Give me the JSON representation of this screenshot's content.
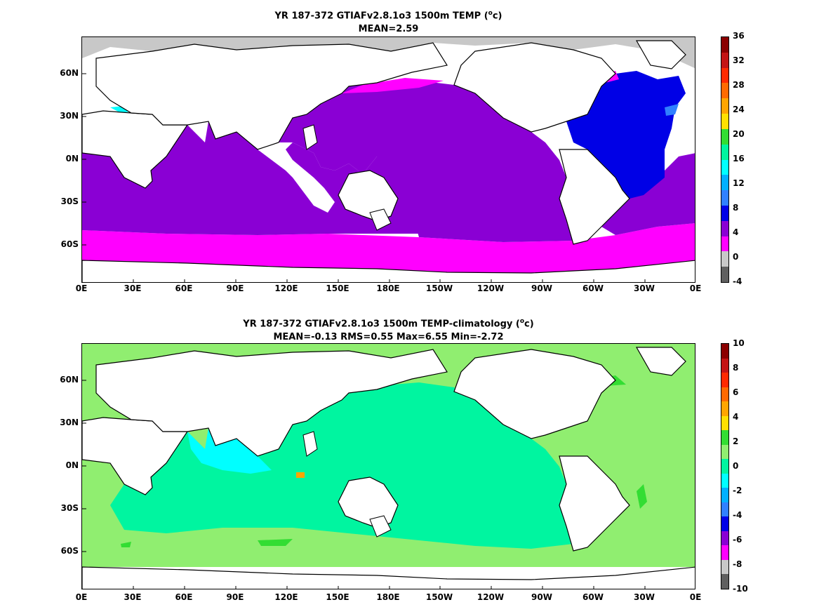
{
  "panels": [
    {
      "title_line1": "YR 187-372 GTIAFv2.8.1o3 1500m TEMP (",
      "title_unit": "o",
      "title_unit_after": "c)",
      "title_line2": "MEAN=2.59",
      "lat_labels": [
        "60N",
        "30N",
        "0N",
        "30S",
        "60S"
      ],
      "lon_labels": [
        "0E",
        "30E",
        "60E",
        "90E",
        "120E",
        "150E",
        "180E",
        "150W",
        "120W",
        "90W",
        "60W",
        "30W",
        "0E"
      ],
      "colorbar": {
        "labels": [
          "36",
          "32",
          "28",
          "24",
          "20",
          "16",
          "12",
          "8",
          "4",
          "0",
          "-4"
        ],
        "colors": [
          "#8b0000",
          "#c41414",
          "#ff2a00",
          "#ff6a00",
          "#ffa500",
          "#ffe000",
          "#33dd33",
          "#00f5a0",
          "#00ffff",
          "#00b0ff",
          "#3080ff",
          "#0000e6",
          "#8a00d4",
          "#ff00ff",
          "#c8c8c8",
          "#606060"
        ]
      }
    },
    {
      "title_line1": "YR 187-372 GTIAFv2.8.1o3 1500m TEMP-climatology (",
      "title_unit": "o",
      "title_unit_after": "c)",
      "title_line2": "MEAN=-0.13   RMS=0.55   Max=6.55   Min=-2.72",
      "lat_labels": [
        "60N",
        "30N",
        "0N",
        "30S",
        "60S"
      ],
      "lon_labels": [
        "0E",
        "30E",
        "60E",
        "90E",
        "120E",
        "150E",
        "180E",
        "150W",
        "120W",
        "90W",
        "60W",
        "30W",
        "0E"
      ],
      "colorbar": {
        "labels": [
          "10",
          "8",
          "6",
          "4",
          "2",
          "0",
          "-2",
          "-4",
          "-6",
          "-8",
          "-10"
        ],
        "colors": [
          "#8b0000",
          "#c41414",
          "#ff2a00",
          "#ff6a00",
          "#ffa500",
          "#ffe000",
          "#33dd33",
          "#90ee70",
          "#00f5a0",
          "#00ffff",
          "#00b0ff",
          "#3080ff",
          "#0000e6",
          "#8a00d4",
          "#ff00ff",
          "#c8c8c8",
          "#606060"
        ]
      }
    }
  ]
}
